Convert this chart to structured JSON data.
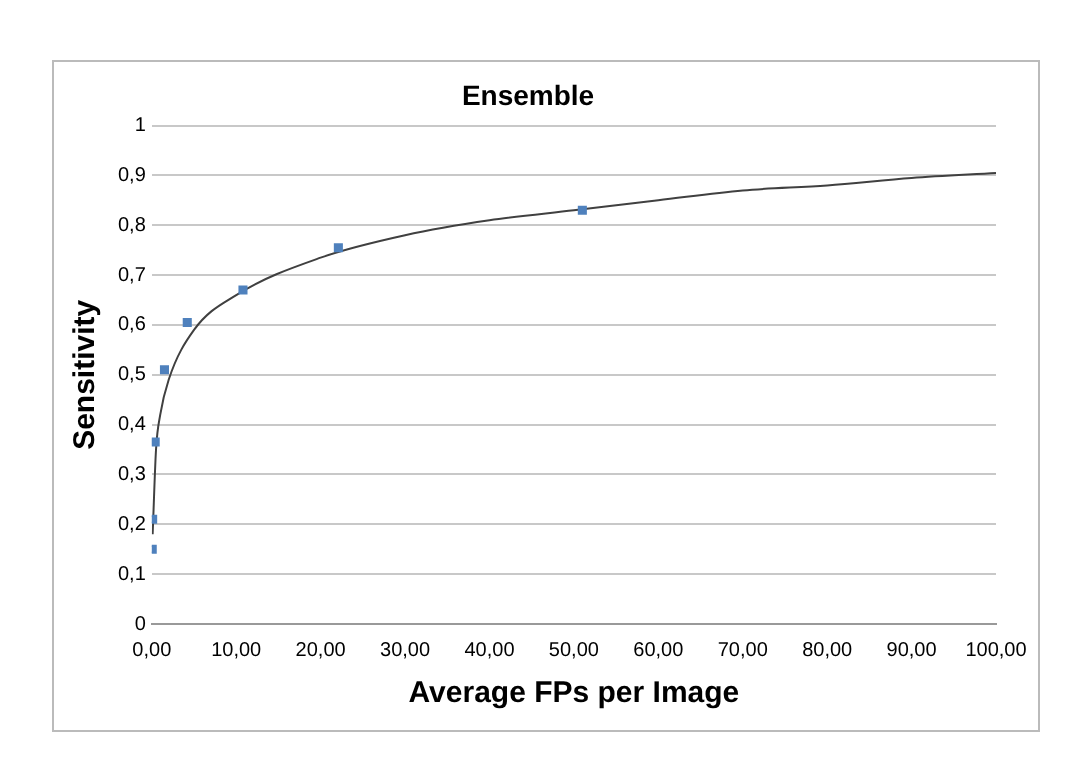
{
  "chart_data": {
    "type": "scatter",
    "title": "Ensemble",
    "xlabel": "Average FPs per Image",
    "ylabel": "Sensitivity",
    "series": [
      {
        "color": "#4f81bd",
        "marker": "square",
        "x": [
          0.05,
          0.1,
          0.4,
          1.5,
          4.2,
          10.8,
          22.1,
          51
        ],
        "values": [
          0.15,
          0.21,
          0.365,
          0.51,
          0.605,
          0.67,
          0.755,
          0.83
        ]
      },
      {
        "type": "line",
        "marker": "none",
        "color": "#404040",
        "x": [
          0.1,
          0.5,
          1,
          2,
          5,
          10,
          20,
          30,
          40,
          50,
          60,
          70,
          80,
          90,
          100
        ],
        "values": [
          0.18,
          0.35,
          0.42,
          0.49,
          0.59,
          0.66,
          0.735,
          0.78,
          0.81,
          0.83,
          0.85,
          0.87,
          0.88,
          0.895,
          0.905
        ]
      }
    ],
    "xlim": [
      0,
      100
    ],
    "xticks": [
      {
        "value": 0,
        "label": "0,00"
      },
      {
        "value": 10,
        "label": "10,00"
      },
      {
        "value": 20,
        "label": "20,00"
      },
      {
        "value": 30,
        "label": "30,00"
      },
      {
        "value": 40,
        "label": "40,00"
      },
      {
        "value": 50,
        "label": "50,00"
      },
      {
        "value": 60,
        "label": "60,00"
      },
      {
        "value": 70,
        "label": "70,00"
      },
      {
        "value": 80,
        "label": "80,00"
      },
      {
        "value": 90,
        "label": "90,00"
      },
      {
        "value": 100,
        "label": "100,00"
      }
    ],
    "ylim": [
      0,
      1
    ],
    "yticks": [
      0,
      {
        "value": 0.1,
        "label": "0,1"
      },
      {
        "value": 0.2,
        "label": "0,2"
      },
      {
        "value": 0.3,
        "label": "0,3"
      },
      {
        "value": 0.4,
        "label": "0,4"
      },
      {
        "value": 0.5,
        "label": "0,5"
      },
      {
        "value": 0.6,
        "label": "0,6"
      },
      {
        "value": 0.7,
        "label": "0,7"
      },
      {
        "value": 0.8,
        "label": "0,8"
      },
      {
        "value": 0.9,
        "label": "0,9"
      },
      1
    ],
    "grid": "y",
    "legend": false
  }
}
